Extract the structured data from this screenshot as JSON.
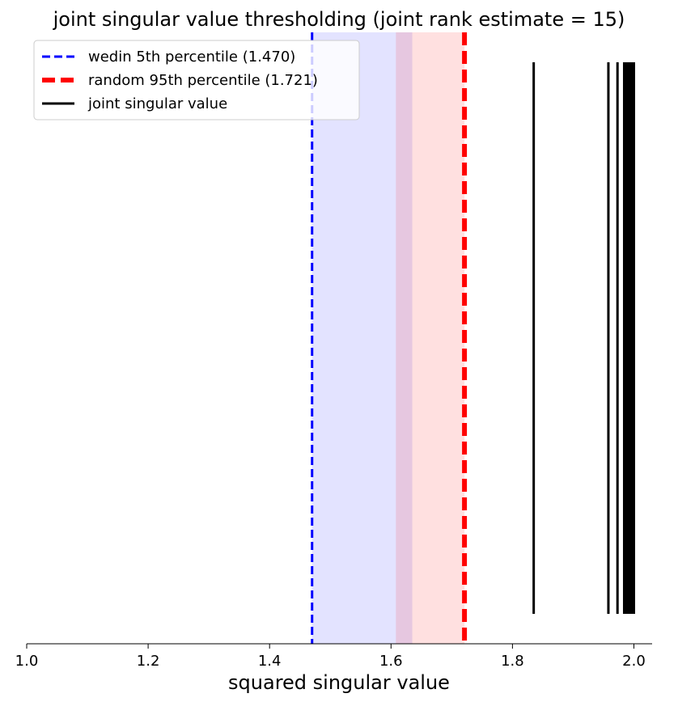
{
  "chart_data": {
    "type": "line",
    "title": "joint singular value thresholding (joint rank estimate = 15)",
    "xlabel": "squared singular value",
    "ylabel": "",
    "xlim": [
      1.0,
      2.03
    ],
    "xticks": [
      1.0,
      1.2,
      1.4,
      1.6,
      1.8,
      2.0
    ],
    "xtick_labels": [
      "1.0",
      "1.2",
      "1.4",
      "1.6",
      "1.8",
      "2.0"
    ],
    "grid": false,
    "legend_position": "top-left",
    "bands": [
      {
        "x_start": 1.47,
        "x_end": 1.635,
        "color": "#0000ff",
        "opacity": 0.11
      },
      {
        "x_start": 1.608,
        "x_end": 1.721,
        "color": "#ff0000",
        "opacity": 0.12
      }
    ],
    "series": [
      {
        "name": "wedin 5th percentile (1.470)",
        "kind": "vline",
        "x": 1.47,
        "color": "#0000ff",
        "style": "dashed"
      },
      {
        "name": "random 95th percentile (1.721)",
        "kind": "vline",
        "x": 1.721,
        "color": "#ff0000",
        "style": "dashed-thick"
      },
      {
        "name": "joint singular value",
        "kind": "values",
        "color": "#000000",
        "values": [
          1.835,
          1.958,
          1.973,
          1.984,
          1.987,
          1.989,
          1.992,
          1.994,
          1.995,
          1.996,
          1.997,
          1.998,
          1.999,
          1.9995,
          2.0
        ]
      }
    ],
    "legend": [
      {
        "label": "wedin 5th percentile (1.470)",
        "color": "#0000ff",
        "style": "dashed"
      },
      {
        "label": "random 95th percentile (1.721)",
        "color": "#ff0000",
        "style": "dashed-thick"
      },
      {
        "label": "joint singular value",
        "color": "#000000",
        "style": "solid"
      }
    ]
  }
}
